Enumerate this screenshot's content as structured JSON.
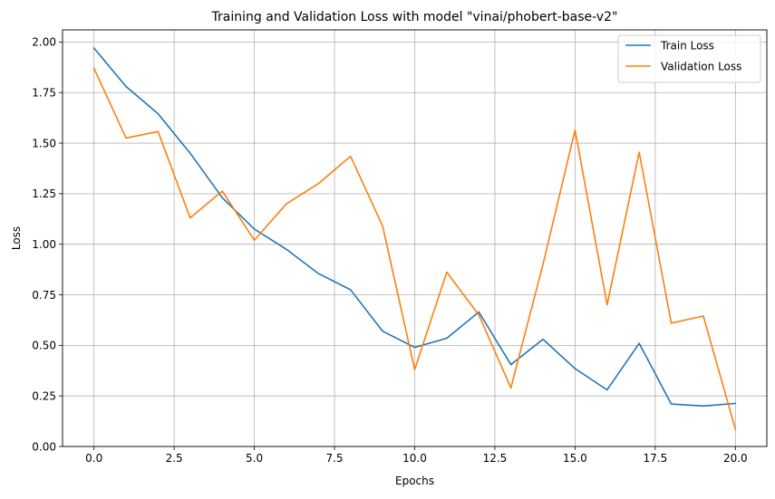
{
  "chart_data": {
    "type": "line",
    "title": "Training and Validation Loss with model \"vinai/phobert-base-v2\"",
    "xlabel": "Epochs",
    "ylabel": "Loss",
    "xlim": [
      -0.98,
      20.98
    ],
    "ylim": [
      0.0,
      2.06
    ],
    "xticks": [
      0.0,
      2.5,
      5.0,
      7.5,
      10.0,
      12.5,
      15.0,
      17.5,
      20.0
    ],
    "xtick_labels": [
      "0.0",
      "2.5",
      "5.0",
      "7.5",
      "10.0",
      "12.5",
      "15.0",
      "17.5",
      "20.0"
    ],
    "yticks": [
      0.0,
      0.25,
      0.5,
      0.75,
      1.0,
      1.25,
      1.5,
      1.75,
      2.0
    ],
    "ytick_labels": [
      "0.00",
      "0.25",
      "0.50",
      "0.75",
      "1.00",
      "1.25",
      "1.50",
      "1.75",
      "2.00"
    ],
    "grid": true,
    "legend_position": "top-right",
    "x": [
      0,
      1,
      2,
      3,
      4,
      5,
      6,
      7,
      8,
      9,
      10,
      11,
      12,
      13,
      14,
      15,
      16,
      17,
      18,
      19,
      20
    ],
    "series": [
      {
        "name": "Train Loss",
        "color": "#1f77b4",
        "values": [
          1.97,
          1.78,
          1.645,
          1.45,
          1.23,
          1.075,
          0.975,
          0.855,
          0.775,
          0.57,
          0.49,
          0.535,
          0.665,
          0.405,
          0.53,
          0.385,
          0.28,
          0.51,
          0.21,
          0.2,
          0.213
        ]
      },
      {
        "name": "Validation Loss",
        "color": "#ff7f0e",
        "values": [
          1.87,
          1.525,
          1.557,
          1.13,
          1.263,
          1.02,
          1.2,
          1.3,
          1.435,
          1.09,
          0.38,
          0.862,
          0.65,
          0.29,
          0.9,
          1.565,
          0.7,
          1.455,
          0.61,
          0.645,
          0.085
        ]
      }
    ]
  }
}
